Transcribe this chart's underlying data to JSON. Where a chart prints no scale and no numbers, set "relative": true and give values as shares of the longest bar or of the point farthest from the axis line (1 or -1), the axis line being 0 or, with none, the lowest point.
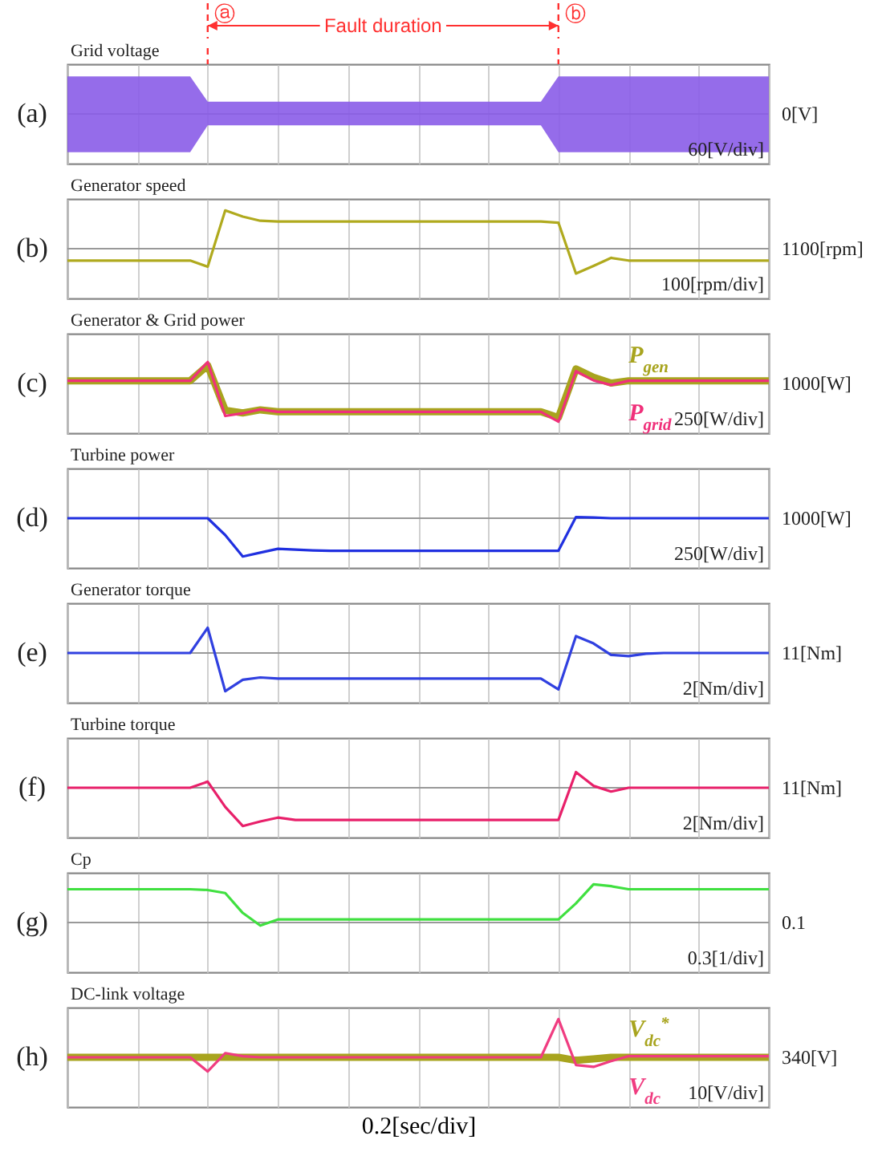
{
  "chart_data": [
    {
      "type": "area",
      "title": "Grid voltage",
      "relative": true,
      "annotations": [
        "(a)",
        "60[V/div]",
        "0[V]",
        "ⓐ",
        "ⓑ",
        "Fault duration"
      ],
      "categories": [
        null,
        null,
        null,
        null,
        null,
        null,
        null,
        null,
        null,
        null,
        null,
        null,
        null,
        null,
        null,
        null,
        null,
        null,
        null,
        null,
        null,
        null,
        null,
        null,
        null,
        null,
        null,
        null,
        null,
        null,
        null,
        null,
        null,
        null,
        null,
        null,
        null,
        null,
        null,
        null,
        null
      ],
      "tick_labels": false,
      "grid": "x",
      "series": [
        {
          "type": "area",
          "color": "#8a5ce8",
          "values": [
            0.98,
            0.98,
            0.98,
            0.98,
            0.98,
            0.98,
            0.98,
            0.98,
            0.32,
            0.32,
            0.32,
            0.32,
            0.32,
            0.32,
            0.32,
            0.32,
            0.32,
            0.32,
            0.32,
            0.32,
            0.32,
            0.32,
            0.32,
            0.32,
            0.32,
            0.32,
            0.32,
            0.32,
            0.98,
            0.98,
            0.98,
            0.98,
            0.98,
            0.98,
            0.98,
            0.98,
            0.98,
            0.98,
            0.98,
            0.98,
            0.98
          ]
        },
        {
          "type": "area",
          "color": "#8a5ce8",
          "values": [
            -1,
            -1,
            -1,
            -1,
            -1,
            -1,
            -1,
            -1,
            -0.3,
            -0.3,
            -0.3,
            -0.3,
            -0.3,
            -0.3,
            -0.3,
            -0.3,
            -0.3,
            -0.3,
            -0.3,
            -0.3,
            -0.3,
            -0.3,
            -0.3,
            -0.3,
            -0.3,
            -0.3,
            -0.3,
            -0.3,
            -1,
            -1,
            -1,
            -1,
            -1,
            -1,
            -1,
            -1,
            -1,
            -1,
            -1,
            -1,
            -1
          ]
        }
      ]
    },
    {
      "type": "line",
      "title": "Generator speed",
      "relative": true,
      "annotations": [
        "(b)",
        "100[rpm/div]",
        "1100[rpm]"
      ],
      "categories": [
        null,
        null,
        null,
        null,
        null,
        null,
        null,
        null,
        null,
        null,
        null,
        null,
        null,
        null,
        null,
        null,
        null,
        null,
        null,
        null,
        null,
        null,
        null,
        null,
        null,
        null,
        null,
        null,
        null,
        null,
        null,
        null,
        null,
        null,
        null,
        null,
        null,
        null,
        null,
        null,
        null
      ],
      "tick_labels": false,
      "grid": "x",
      "series": [
        {
          "color": "#b0aa1e",
          "values": [
            -0.31,
            -0.31,
            -0.31,
            -0.31,
            -0.31,
            -0.31,
            -0.31,
            -0.31,
            -0.47,
            1,
            0.84,
            0.73,
            0.71,
            0.71,
            0.71,
            0.71,
            0.71,
            0.71,
            0.71,
            0.71,
            0.71,
            0.71,
            0.71,
            0.71,
            0.71,
            0.71,
            0.71,
            0.71,
            0.68,
            -0.65,
            -0.45,
            -0.24,
            -0.31,
            -0.31,
            -0.31,
            -0.31,
            -0.31,
            -0.31,
            -0.31,
            -0.31,
            -0.31
          ]
        }
      ]
    },
    {
      "type": "line",
      "title": "Generator & Grid power",
      "relative": true,
      "annotations": [
        "(c)",
        "250[W/div]",
        "1000[W]"
      ],
      "categories": [
        null,
        null,
        null,
        null,
        null,
        null,
        null,
        null,
        null,
        null,
        null,
        null,
        null,
        null,
        null,
        null,
        null,
        null,
        null,
        null,
        null,
        null,
        null,
        null,
        null,
        null,
        null,
        null,
        null,
        null,
        null,
        null,
        null,
        null,
        null,
        null,
        null,
        null,
        null,
        null,
        null
      ],
      "tick_labels": false,
      "grid": "x",
      "series": [
        {
          "name": "P$_{gen}$",
          "color": "#a8a41e",
          "values": [
            0.07,
            0.07,
            0.07,
            0.07,
            0.07,
            0.07,
            0.07,
            0.07,
            0.47,
            -0.7,
            -0.77,
            -0.69,
            -0.74,
            -0.74,
            -0.74,
            -0.74,
            -0.74,
            -0.74,
            -0.74,
            -0.74,
            -0.74,
            -0.74,
            -0.74,
            -0.74,
            -0.74,
            -0.74,
            -0.74,
            -0.74,
            -0.89,
            0.38,
            0.16,
            0.01,
            0.07,
            0.07,
            0.07,
            0.07,
            0.07,
            0.07,
            0.07,
            0.07,
            0.07
          ]
        },
        {
          "name": "P$_{grid}$",
          "color": "#f0307a",
          "values": [
            0.07,
            0.07,
            0.07,
            0.07,
            0.07,
            0.07,
            0.07,
            0.07,
            0.56,
            -0.85,
            -0.78,
            -0.68,
            -0.74,
            -0.74,
            -0.74,
            -0.74,
            -0.74,
            -0.74,
            -0.74,
            -0.74,
            -0.74,
            -0.74,
            -0.74,
            -0.74,
            -0.74,
            -0.74,
            -0.74,
            -0.74,
            -1,
            0.32,
            0.08,
            -0.04,
            0.07,
            0.07,
            0.07,
            0.07,
            0.07,
            0.07,
            0.07,
            0.07,
            0.07
          ]
        }
      ]
    },
    {
      "type": "line",
      "title": "Turbine  power",
      "relative": true,
      "annotations": [
        "(d)",
        "250[W/div]",
        "1000[W]"
      ],
      "categories": [
        null,
        null,
        null,
        null,
        null,
        null,
        null,
        null,
        null,
        null,
        null,
        null,
        null,
        null,
        null,
        null,
        null,
        null,
        null,
        null,
        null,
        null,
        null,
        null,
        null,
        null,
        null,
        null,
        null,
        null,
        null,
        null,
        null,
        null,
        null,
        null,
        null,
        null,
        null,
        null,
        null
      ],
      "tick_labels": false,
      "grid": "x",
      "series": [
        {
          "color": "#2030e0",
          "values": [
            0,
            0,
            0,
            0,
            0,
            0,
            0,
            0,
            0,
            -0.44,
            -1,
            -0.9,
            -0.8,
            -0.82,
            -0.84,
            -0.85,
            -0.85,
            -0.85,
            -0.85,
            -0.85,
            -0.85,
            -0.85,
            -0.85,
            -0.85,
            -0.85,
            -0.85,
            -0.85,
            -0.85,
            -0.85,
            0.03,
            0.02,
            0,
            0,
            0,
            0,
            0,
            0,
            0,
            0,
            0,
            0
          ]
        }
      ]
    },
    {
      "type": "line",
      "title": "Generator torque",
      "relative": true,
      "annotations": [
        "(e)",
        "2[Nm/div]",
        "11[Nm]"
      ],
      "categories": [
        null,
        null,
        null,
        null,
        null,
        null,
        null,
        null,
        null,
        null,
        null,
        null,
        null,
        null,
        null,
        null,
        null,
        null,
        null,
        null,
        null,
        null,
        null,
        null,
        null,
        null,
        null,
        null,
        null,
        null,
        null,
        null,
        null,
        null,
        null,
        null,
        null,
        null,
        null,
        null,
        null
      ],
      "tick_labels": false,
      "grid": "x",
      "series": [
        {
          "color": "#3040e0",
          "values": [
            0,
            0,
            0,
            0,
            0,
            0,
            0,
            0,
            0.66,
            -1,
            -0.7,
            -0.64,
            -0.67,
            -0.67,
            -0.67,
            -0.67,
            -0.67,
            -0.67,
            -0.67,
            -0.67,
            -0.67,
            -0.67,
            -0.67,
            -0.67,
            -0.67,
            -0.67,
            -0.67,
            -0.67,
            -0.95,
            0.44,
            0.25,
            -0.05,
            -0.08,
            -0.02,
            0,
            0,
            0,
            0,
            0,
            0,
            0
          ]
        }
      ]
    },
    {
      "type": "line",
      "title": "Turbine torque",
      "relative": true,
      "annotations": [
        "(f)",
        "2[Nm/div]",
        "11[Nm]"
      ],
      "categories": [
        null,
        null,
        null,
        null,
        null,
        null,
        null,
        null,
        null,
        null,
        null,
        null,
        null,
        null,
        null,
        null,
        null,
        null,
        null,
        null,
        null,
        null,
        null,
        null,
        null,
        null,
        null,
        null,
        null,
        null,
        null,
        null,
        null,
        null,
        null,
        null,
        null,
        null,
        null,
        null,
        null
      ],
      "tick_labels": false,
      "grid": "x",
      "series": [
        {
          "color": "#e8206a",
          "values": [
            0,
            0,
            0,
            0,
            0,
            0,
            0,
            0,
            0.16,
            -0.5,
            -1,
            -0.88,
            -0.78,
            -0.84,
            -0.84,
            -0.84,
            -0.84,
            -0.84,
            -0.84,
            -0.84,
            -0.84,
            -0.84,
            -0.84,
            -0.84,
            -0.84,
            -0.84,
            -0.84,
            -0.84,
            -0.84,
            0.41,
            0.05,
            -0.1,
            0,
            0,
            0,
            0,
            0,
            0,
            0,
            0,
            0
          ]
        }
      ]
    },
    {
      "type": "line",
      "title": "Cp",
      "relative": true,
      "annotations": [
        "(g)",
        "0.3[1/div]",
        "0.1"
      ],
      "categories": [
        null,
        null,
        null,
        null,
        null,
        null,
        null,
        null,
        null,
        null,
        null,
        null,
        null,
        null,
        null,
        null,
        null,
        null,
        null,
        null,
        null,
        null,
        null,
        null,
        null,
        null,
        null,
        null,
        null,
        null,
        null,
        null,
        null,
        null,
        null,
        null,
        null,
        null,
        null,
        null,
        null
      ],
      "tick_labels": false,
      "grid": "x",
      "series": [
        {
          "color": "#40e040",
          "values": [
            0.87,
            0.87,
            0.87,
            0.87,
            0.87,
            0.87,
            0.87,
            0.87,
            0.85,
            0.77,
            0.25,
            -0.08,
            0.08,
            0.08,
            0.08,
            0.08,
            0.08,
            0.08,
            0.08,
            0.08,
            0.08,
            0.08,
            0.08,
            0.08,
            0.08,
            0.08,
            0.08,
            0.08,
            0.08,
            0.5,
            1,
            0.95,
            0.87,
            0.87,
            0.87,
            0.87,
            0.87,
            0.87,
            0.87,
            0.87,
            0.87
          ]
        }
      ]
    },
    {
      "type": "line",
      "title": "DC-link voltage",
      "xlabel": "0.2[sec/div]",
      "relative": true,
      "annotations": [
        "(h)",
        "10[V/div]",
        "340[V]"
      ],
      "categories": [
        null,
        null,
        null,
        null,
        null,
        null,
        null,
        null,
        null,
        null,
        null,
        null,
        null,
        null,
        null,
        null,
        null,
        null,
        null,
        null,
        null,
        null,
        null,
        null,
        null,
        null,
        null,
        null,
        null,
        null,
        null,
        null,
        null,
        null,
        null,
        null,
        null,
        null,
        null,
        null,
        null
      ],
      "tick_labels": false,
      "grid": "x",
      "series": [
        {
          "name": "V$_{dc}$$^{*}$",
          "color": "#a8a41e",
          "values": [
            0,
            0,
            0,
            0,
            0,
            0,
            0,
            0,
            0,
            0,
            0,
            0,
            0,
            0,
            0,
            0,
            0,
            0,
            0,
            0,
            0,
            0,
            0,
            0,
            0,
            0,
            0,
            0,
            0,
            -0.08,
            -0.04,
            0,
            0,
            0,
            0,
            0,
            0,
            0,
            0,
            0,
            0
          ]
        },
        {
          "name": "V$_{dc}$",
          "color": "#f03c80",
          "values": [
            0,
            0,
            0,
            0,
            0,
            0,
            0,
            0,
            -0.37,
            0.11,
            0.03,
            0,
            0,
            0,
            0,
            0,
            0,
            0,
            0,
            0,
            0,
            0,
            0,
            0,
            0,
            0,
            0,
            0,
            1,
            -0.2,
            -0.25,
            -0.1,
            0.03,
            0.03,
            0.03,
            0.03,
            0.03,
            0.03,
            0.03,
            0.03,
            0.03
          ]
        }
      ]
    }
  ]
}
